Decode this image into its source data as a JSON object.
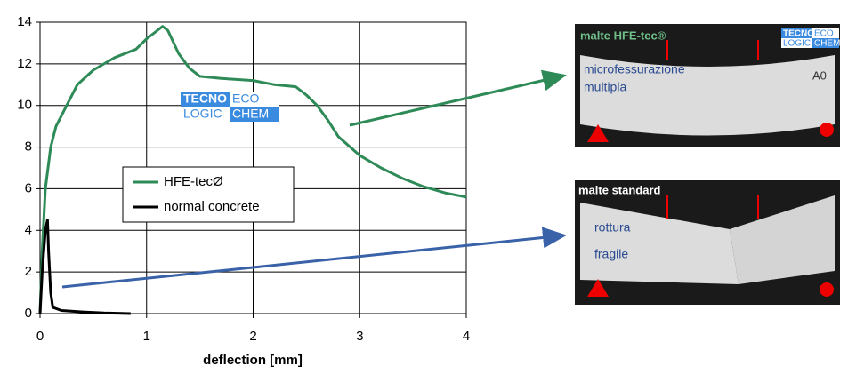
{
  "chart_data": {
    "type": "line",
    "x_label": "deflection [mm]",
    "xlim": [
      0,
      4
    ],
    "xticks": [
      0,
      1,
      2,
      3,
      4
    ],
    "ylim": [
      0,
      14
    ],
    "yticks": [
      0,
      2,
      4,
      6,
      8,
      10,
      12,
      14
    ],
    "grid": true,
    "legend": "center",
    "series": [
      {
        "name": "HFE-tecØ",
        "color": "#2e8b57",
        "x": [
          0,
          0.02,
          0.05,
          0.1,
          0.15,
          0.25,
          0.35,
          0.5,
          0.7,
          0.9,
          1.0,
          1.1,
          1.15,
          1.2,
          1.3,
          1.4,
          1.5,
          1.7,
          2.0,
          2.2,
          2.4,
          2.5,
          2.6,
          2.7,
          2.8,
          3.0,
          3.2,
          3.4,
          3.6,
          3.8,
          4.0
        ],
        "values": [
          0,
          3,
          6,
          8,
          9,
          10,
          11,
          11.7,
          12.3,
          12.7,
          13.2,
          13.6,
          13.8,
          13.6,
          12.5,
          11.8,
          11.4,
          11.3,
          11.2,
          11.0,
          10.9,
          10.5,
          10.0,
          9.3,
          8.5,
          7.6,
          7.0,
          6.5,
          6.1,
          5.8,
          5.6
        ]
      },
      {
        "name": "normal concrete",
        "color": "#000000",
        "x": [
          0,
          0.02,
          0.05,
          0.07,
          0.08,
          0.1,
          0.12,
          0.2,
          0.4,
          0.6,
          0.85
        ],
        "values": [
          0,
          2,
          4,
          4.5,
          3,
          1,
          0.3,
          0.15,
          0.08,
          0.03,
          0
        ]
      }
    ]
  },
  "logo": {
    "line1": [
      "TECNO",
      "ECO"
    ],
    "line2": [
      "LOGIC",
      "CHEM"
    ]
  },
  "photos": [
    {
      "title": "malte HFE-tec®",
      "labels": [
        "microfessurazione",
        "multipla"
      ],
      "tag": "A0"
    },
    {
      "title": "malte standard",
      "labels": [
        "rottura",
        "fragile"
      ]
    }
  ]
}
